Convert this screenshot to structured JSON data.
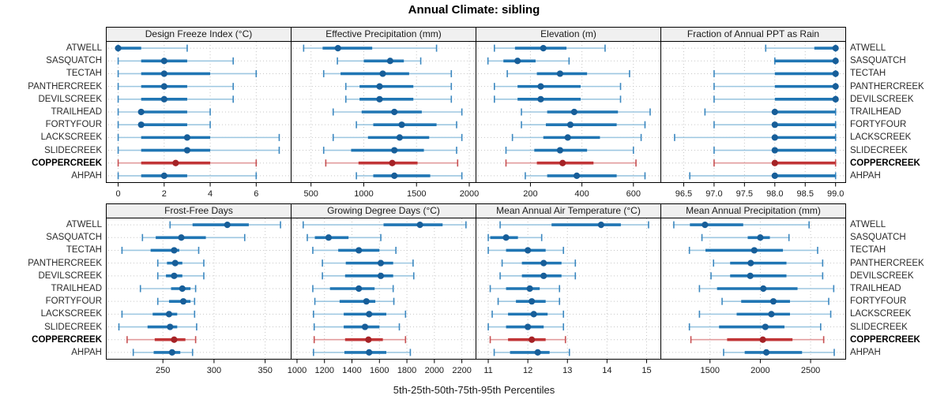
{
  "title": "Annual Climate: sibling",
  "caption": "5th-25th-50th-75th-95th Percentiles",
  "percentile_legend": [
    "5th",
    "25th",
    "50th",
    "75th",
    "95th"
  ],
  "sites": [
    "ATWELL",
    "SASQUATCH",
    "TECTAH",
    "PANTHERCREEK",
    "DEVILSCREEK",
    "TRAILHEAD",
    "FORTYFOUR",
    "LACKSCREEK",
    "SLIDECREEK",
    "COPPERCREEK",
    "AHPAH"
  ],
  "highlight_site": "COPPERCREEK",
  "colors": {
    "blue_thin": "#9dc7e1",
    "blue_cap": "#3c88c0",
    "blue_thick": "#2076b4",
    "blue_dot": "#175e99",
    "red_thin": "#e29c9d",
    "red_cap": "#c75052",
    "red_thick": "#c13537",
    "red_dot": "#a52226",
    "strip_bg": "#f0f0f0",
    "grid_line": "#c6c6c6",
    "panel_border": "#000000",
    "axis_text": "#1a1a1a"
  },
  "chart_data": {
    "type": "dot-whisker trellis (5th-25th-50th-75th-95th percentile summaries per site)",
    "title": "Annual Climate: sibling",
    "xlabel": "5th-25th-50th-75th-95th Percentiles",
    "grid": "dotted gridlines at x ticks and at each site row",
    "legend_position": "none (caption below figure)",
    "panels": [
      {
        "grid_row": 0,
        "title": "Design Freeze Index (°C)",
        "xlim": [
          -0.5,
          7.5
        ],
        "ticks": [
          0,
          2,
          4,
          6
        ],
        "tick_labels": [
          "0",
          "2",
          "4",
          "6"
        ],
        "values": [
          [
            0,
            0,
            0,
            1,
            3
          ],
          [
            0,
            1,
            2,
            3,
            5
          ],
          [
            0,
            1,
            2,
            4,
            6
          ],
          [
            0,
            1,
            2,
            3,
            5
          ],
          [
            0,
            1,
            2,
            3,
            5
          ],
          [
            0,
            1,
            1,
            3,
            4
          ],
          [
            0,
            1,
            1,
            3,
            4
          ],
          [
            0,
            1,
            3,
            4,
            7
          ],
          [
            0,
            1,
            3,
            4,
            7
          ],
          [
            0,
            1,
            2.5,
            4,
            6
          ],
          [
            0,
            1,
            2,
            3,
            6
          ]
        ]
      },
      {
        "grid_row": 0,
        "title": "Effective Precipitation (mm)",
        "xlim": [
          315,
          2060
        ],
        "ticks": [
          500,
          1000,
          1500,
          2000
        ],
        "tick_labels": [
          "500",
          "1000",
          "1500",
          "2000"
        ],
        "values": [
          [
            430,
            610,
            755,
            1080,
            1690
          ],
          [
            750,
            1000,
            1250,
            1380,
            1540
          ],
          [
            620,
            780,
            1180,
            1430,
            1830
          ],
          [
            830,
            960,
            1150,
            1470,
            1830
          ],
          [
            830,
            960,
            1150,
            1470,
            1830
          ],
          [
            710,
            980,
            1290,
            1550,
            1930
          ],
          [
            930,
            1090,
            1360,
            1690,
            1880
          ],
          [
            710,
            1040,
            1340,
            1620,
            1930
          ],
          [
            620,
            880,
            1290,
            1570,
            1880
          ],
          [
            640,
            950,
            1270,
            1510,
            1890
          ],
          [
            930,
            1090,
            1290,
            1630,
            1930
          ]
        ]
      },
      {
        "grid_row": 0,
        "title": "Elevation (m)",
        "xlim": [
          -10,
          705
        ],
        "ticks": [
          200,
          400,
          600
        ],
        "tick_labels": [
          "200",
          "400",
          "600"
        ],
        "values": [
          [
            60,
            140,
            250,
            340,
            490
          ],
          [
            35,
            95,
            150,
            220,
            350
          ],
          [
            110,
            225,
            315,
            420,
            585
          ],
          [
            60,
            150,
            240,
            395,
            550
          ],
          [
            60,
            150,
            240,
            395,
            550
          ],
          [
            165,
            265,
            370,
            540,
            665
          ],
          [
            165,
            260,
            355,
            535,
            645
          ],
          [
            130,
            250,
            345,
            470,
            630
          ],
          [
            105,
            215,
            315,
            420,
            600
          ],
          [
            105,
            225,
            325,
            445,
            610
          ],
          [
            180,
            265,
            380,
            535,
            645
          ]
        ]
      },
      {
        "grid_row": 0,
        "title": "Fraction of Annual PPT as Rain",
        "xlim": [
          96.13,
          99.16
        ],
        "ticks": [
          96.5,
          97.0,
          97.5,
          98.0,
          98.5,
          99.0
        ],
        "tick_labels": [
          "96.5",
          "97.0",
          "97.5",
          "98.0",
          "98.5",
          "99.0"
        ],
        "values": [
          [
            97.85,
            98.65,
            99,
            99,
            99
          ],
          [
            98,
            98,
            99,
            99,
            99
          ],
          [
            97,
            98,
            99,
            99,
            99
          ],
          [
            97,
            98,
            99,
            99,
            99
          ],
          [
            97,
            98,
            99,
            99,
            99
          ],
          [
            96.85,
            98,
            98,
            99,
            99
          ],
          [
            97,
            98,
            98,
            99,
            99
          ],
          [
            96.35,
            98,
            98,
            99,
            99
          ],
          [
            97,
            98,
            98,
            99,
            99
          ],
          [
            97,
            98,
            98,
            99,
            99
          ],
          [
            96.6,
            98,
            98,
            99,
            99
          ]
        ]
      },
      {
        "grid_row": 1,
        "title": "Frost-Free Days",
        "xlim": [
          195,
          375
        ],
        "ticks": [
          250,
          300,
          350
        ],
        "tick_labels": [
          "250",
          "300",
          "350"
        ],
        "values": [
          [
            257,
            279,
            313,
            334,
            365
          ],
          [
            230,
            243,
            268,
            292,
            330
          ],
          [
            210,
            238,
            261,
            266,
            285
          ],
          [
            245,
            254,
            262,
            269,
            290
          ],
          [
            245,
            253,
            261,
            269,
            290
          ],
          [
            228,
            258,
            269,
            277,
            282
          ],
          [
            245,
            256,
            270,
            277,
            281
          ],
          [
            210,
            240,
            256,
            264,
            281
          ],
          [
            207,
            235,
            257,
            264,
            283
          ],
          [
            215,
            242,
            261,
            272,
            282
          ],
          [
            221,
            241,
            259,
            267,
            279
          ]
        ]
      },
      {
        "grid_row": 1,
        "title": "Growing Degree Days (°C)",
        "xlim": [
          960,
          2300
        ],
        "ticks": [
          1000,
          1200,
          1400,
          1600,
          1800,
          2000,
          2200
        ],
        "tick_labels": [
          "1000",
          "1200",
          "1400",
          "1600",
          "1800",
          "2000",
          "2200"
        ],
        "values": [
          [
            1045,
            1630,
            1895,
            2060,
            2230
          ],
          [
            1075,
            1130,
            1230,
            1375,
            1610
          ],
          [
            1115,
            1300,
            1450,
            1600,
            1720
          ],
          [
            1185,
            1355,
            1610,
            1700,
            1845
          ],
          [
            1185,
            1350,
            1610,
            1700,
            1850
          ],
          [
            1115,
            1240,
            1450,
            1565,
            1700
          ],
          [
            1130,
            1310,
            1505,
            1570,
            1705
          ],
          [
            1120,
            1340,
            1525,
            1650,
            1790
          ],
          [
            1125,
            1340,
            1495,
            1600,
            1745
          ],
          [
            1125,
            1350,
            1520,
            1625,
            1790
          ],
          [
            1120,
            1345,
            1525,
            1650,
            1825
          ]
        ]
      },
      {
        "grid_row": 1,
        "title": "Mean Annual Air Temperature (°C)",
        "xlim": [
          10.7,
          15.35
        ],
        "ticks": [
          11,
          12,
          13,
          14,
          15
        ],
        "tick_labels": [
          "11",
          "12",
          "13",
          "14",
          "15"
        ],
        "values": [
          [
            11.3,
            12.6,
            13.85,
            14.35,
            15.05
          ],
          [
            11.0,
            11.05,
            11.45,
            11.75,
            12.35
          ],
          [
            11.0,
            11.45,
            12.0,
            12.45,
            12.9
          ],
          [
            11.35,
            11.85,
            12.4,
            12.85,
            13.2
          ],
          [
            11.3,
            11.85,
            12.4,
            12.85,
            13.2
          ],
          [
            11.05,
            11.45,
            12.05,
            12.3,
            12.8
          ],
          [
            11.25,
            11.7,
            12.1,
            12.45,
            12.8
          ],
          [
            11.1,
            11.5,
            12.15,
            12.5,
            12.9
          ],
          [
            11.0,
            11.45,
            12.0,
            12.4,
            12.9
          ],
          [
            11.05,
            11.5,
            12.1,
            12.45,
            12.95
          ],
          [
            11.15,
            11.55,
            12.25,
            12.55,
            13.05
          ]
        ]
      },
      {
        "grid_row": 1,
        "title": "Mean Annual Precipitation (mm)",
        "xlim": [
          1015,
          2845
        ],
        "ticks": [
          1500,
          2000,
          2500
        ],
        "tick_labels": [
          "1500",
          "2000",
          "2500"
        ],
        "values": [
          [
            1140,
            1300,
            1450,
            1830,
            2485
          ],
          [
            1420,
            1875,
            2000,
            2095,
            2285
          ],
          [
            1295,
            1455,
            1940,
            2225,
            2570
          ],
          [
            1535,
            1700,
            1905,
            2260,
            2620
          ],
          [
            1510,
            1700,
            1900,
            2260,
            2620
          ],
          [
            1395,
            1570,
            2030,
            2370,
            2730
          ],
          [
            1620,
            1810,
            2130,
            2295,
            2680
          ],
          [
            1395,
            1765,
            2110,
            2295,
            2700
          ],
          [
            1295,
            1590,
            2050,
            2240,
            2600
          ],
          [
            1310,
            1670,
            2025,
            2320,
            2630
          ],
          [
            1635,
            1845,
            2060,
            2415,
            2735
          ]
        ]
      }
    ]
  }
}
